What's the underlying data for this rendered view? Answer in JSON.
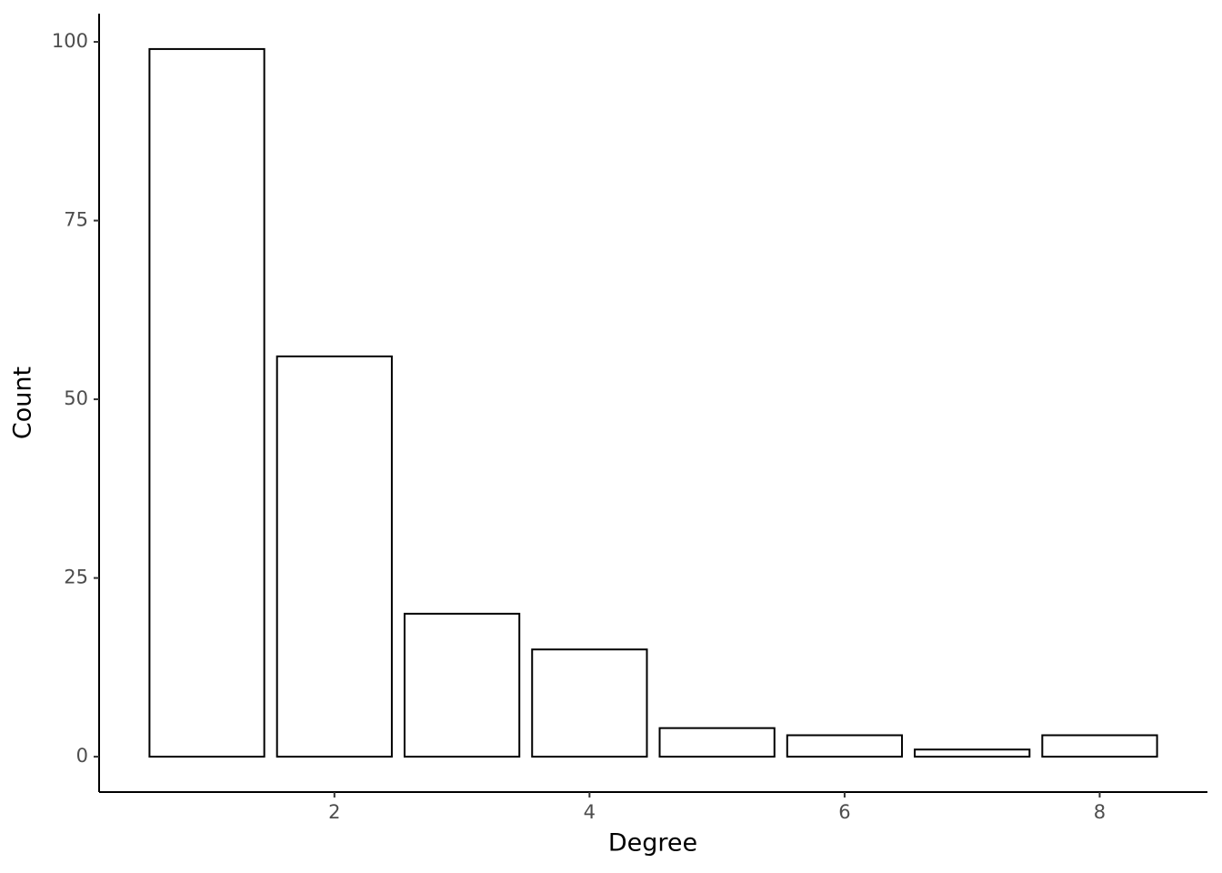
{
  "chart_data": {
    "type": "bar",
    "x_label": "Degree",
    "y_label": "Count",
    "x": [
      1,
      2,
      3,
      4,
      5,
      6,
      7,
      8
    ],
    "values": [
      99,
      56,
      20,
      15,
      4,
      3,
      1,
      3
    ],
    "color": "#ffffff",
    "edge_color": "#000000",
    "xlim": [
      0.155,
      8.845
    ],
    "xticks": [
      2,
      4,
      6,
      8
    ],
    "ylim": [
      -4.95,
      103.95
    ],
    "yticks": [
      0,
      25,
      50,
      75,
      100
    ],
    "grid": false
  }
}
